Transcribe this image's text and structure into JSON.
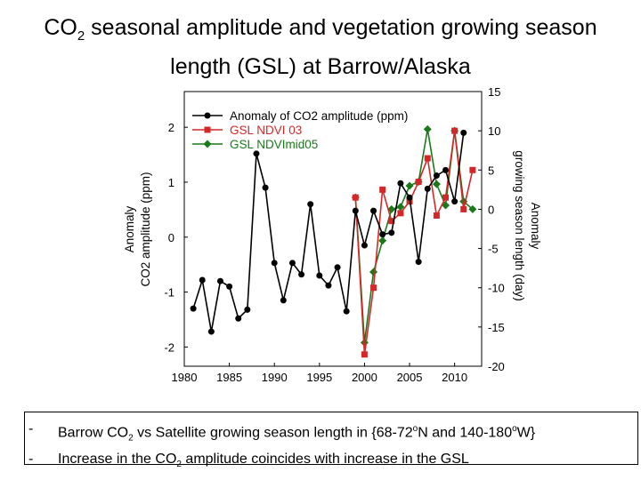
{
  "slide": {
    "title_line1_pre": "CO",
    "title_line1_sub": "2",
    "title_line1_post": " seasonal amplitude and vegetation growing season",
    "title_line2": "length (GSL) at Barrow/Alaska"
  },
  "bullets": [
    {
      "dash": "-",
      "pre": "Barrow CO",
      "sub": "2",
      "mid": " vs Satellite growing season length in {68-72",
      "sup1": "o",
      "mid2": "N and 140-180",
      "sup2": "o",
      "post": "W}"
    },
    {
      "dash": "-",
      "pre": "Increase in the CO",
      "sub": "2",
      "post": " amplitude coincides with increase in the GSL"
    }
  ],
  "chart_data": {
    "type": "line",
    "left_ylabel_line1": "Anomaly",
    "left_ylabel_line2": "CO2 amplitude (ppm)",
    "right_ylabel_line1": "Anomaly",
    "right_ylabel_line2": "growing season length (day)",
    "x_ticks": [
      1980,
      1985,
      1990,
      1995,
      2000,
      2005,
      2010
    ],
    "left_ticks": [
      2,
      1,
      0,
      -1,
      -2
    ],
    "right_ticks": [
      15,
      10,
      5,
      0,
      -5,
      -10,
      -15,
      -20
    ],
    "xlim": [
      1980,
      2013
    ],
    "left_ylim": [
      -2.35,
      2.65
    ],
    "right_ylim": [
      -20,
      15
    ],
    "series": [
      {
        "name": "Anomaly of CO2 amplitude (ppm)",
        "axis": "left",
        "color": "#000000",
        "marker": "circle",
        "x": [
          1981,
          1982,
          1983,
          1984,
          1985,
          1986,
          1987,
          1988,
          1989,
          1990,
          1991,
          1992,
          1993,
          1994,
          1995,
          1996,
          1997,
          1998,
          1999,
          2000,
          2001,
          2002,
          2003,
          2004,
          2005,
          2006,
          2007,
          2008,
          2009,
          2010,
          2011
        ],
        "values": [
          -1.3,
          -0.78,
          -1.72,
          -0.8,
          -0.9,
          -1.48,
          -1.32,
          1.52,
          0.9,
          -0.47,
          -1.15,
          -0.47,
          -0.68,
          0.6,
          -0.7,
          -0.88,
          -0.55,
          -1.35,
          0.48,
          -0.15,
          0.48,
          0.05,
          0.08,
          0.98,
          0.72,
          -0.45,
          0.88,
          1.12,
          1.22,
          0.65,
          1.9
        ]
      },
      {
        "name": "GSL NDVI 03",
        "axis": "right",
        "color": "#d62728",
        "marker": "square",
        "x": [
          1999,
          2000,
          2001,
          2002,
          2003,
          2004,
          2005,
          2006,
          2007,
          2008,
          2009,
          2010,
          2011,
          2012
        ],
        "values": [
          1.5,
          -18.5,
          -10,
          2.5,
          -1.5,
          -0.5,
          1,
          3.5,
          6.5,
          -0.8,
          1.5,
          10,
          0,
          5
        ]
      },
      {
        "name": "GSL NDVImid05",
        "axis": "right",
        "color": "#1a7a1a",
        "marker": "diamond",
        "x": [
          1999,
          2000,
          2001,
          2002,
          2003,
          2004,
          2005,
          2006,
          2007,
          2008,
          2009,
          2010,
          2011,
          2012
        ],
        "values": [
          1.5,
          -17,
          -8,
          -4,
          0,
          0.3,
          3,
          3.5,
          10.2,
          3.2,
          0.5,
          10,
          1,
          0
        ]
      }
    ]
  }
}
